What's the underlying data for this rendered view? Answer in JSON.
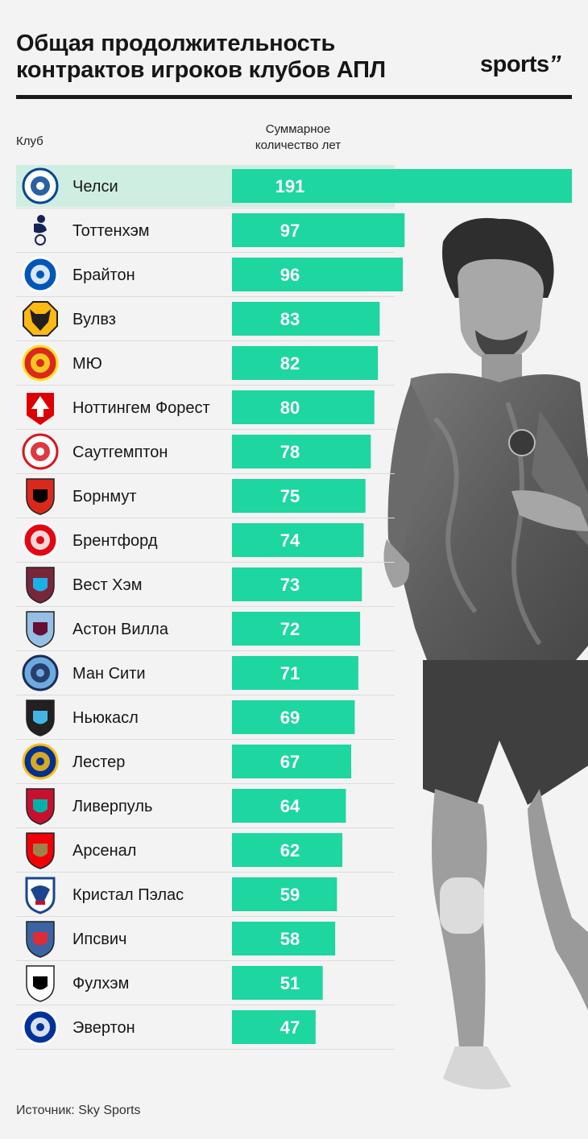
{
  "header": {
    "title_line1": "Общая продолжительность",
    "title_line2": "контрактов игроков клубов АПЛ",
    "brand": "sports",
    "brand_mark": "’’"
  },
  "columns": {
    "club": "Клуб",
    "years_line1": "Суммарное",
    "years_line2": "количество лет"
  },
  "footer": {
    "source": "Источник: Sky Sports"
  },
  "colors": {
    "bar": "#1dd6a0",
    "highlight_row": "#cfeee2",
    "separator": "#dcdcdc",
    "value_text": "#ffffff"
  },
  "chart_data": {
    "type": "bar",
    "orientation": "horizontal",
    "title": "Общая продолжительность контрактов игроков клубов АПЛ",
    "xlabel": "Суммарное количество лет",
    "ylabel": "Клуб",
    "categories": [
      "Челси",
      "Тоттенхэм",
      "Брайтон",
      "Вулвз",
      "МЮ",
      "Ноттингем Форест",
      "Саутгемптон",
      "Борнмут",
      "Брентфорд",
      "Вест Хэм",
      "Астон Вилла",
      "Ман Сити",
      "Ньюкасл",
      "Лестер",
      "Ливерпуль",
      "Арсенал",
      "Кристал Пэлас",
      "Ипсвич",
      "Фулхэм",
      "Эвертон"
    ],
    "values": [
      191,
      97,
      96,
      83,
      82,
      80,
      78,
      75,
      74,
      73,
      72,
      71,
      69,
      67,
      64,
      62,
      59,
      58,
      51,
      47
    ],
    "highlight": "Челси",
    "source": "Источник: Sky Sports"
  },
  "crests": [
    {
      "icon": "chelsea-crest-icon",
      "bg": "#ffffff",
      "fg": "#034694",
      "shape": "circle"
    },
    {
      "icon": "tottenham-crest-icon",
      "bg": "none",
      "fg": "#132257",
      "shape": "cockerel"
    },
    {
      "icon": "brighton-crest-icon",
      "bg": "#0057b8",
      "fg": "#ffffff",
      "shape": "circle"
    },
    {
      "icon": "wolves-crest-icon",
      "bg": "#fdb913",
      "fg": "#231f20",
      "shape": "octagon"
    },
    {
      "icon": "man-utd-crest-icon",
      "bg": "#da291c",
      "fg": "#fbe122",
      "shape": "circle"
    },
    {
      "icon": "nottingham-forest-crest-icon",
      "bg": "#dd0000",
      "fg": "#ffffff",
      "shape": "tree"
    },
    {
      "icon": "southampton-crest-icon",
      "bg": "#ffffff",
      "fg": "#d71920",
      "shape": "circle"
    },
    {
      "icon": "bournemouth-crest-icon",
      "bg": "#da291c",
      "fg": "#000000",
      "shape": "shield"
    },
    {
      "icon": "brentford-crest-icon",
      "bg": "#e30613",
      "fg": "#ffffff",
      "shape": "circle"
    },
    {
      "icon": "west-ham-crest-icon",
      "bg": "#7a263a",
      "fg": "#1bb1e7",
      "shape": "shield"
    },
    {
      "icon": "aston-villa-crest-icon",
      "bg": "#95bfe5",
      "fg": "#670e36",
      "shape": "shield"
    },
    {
      "icon": "man-city-crest-icon",
      "bg": "#6cabdd",
      "fg": "#1c2c5b",
      "shape": "circle"
    },
    {
      "icon": "newcastle-crest-icon",
      "bg": "#241f20",
      "fg": "#41b6e6",
      "shape": "shield"
    },
    {
      "icon": "leicester-crest-icon",
      "bg": "#003090",
      "fg": "#fdbe11",
      "shape": "circle"
    },
    {
      "icon": "liverpool-crest-icon",
      "bg": "#c8102e",
      "fg": "#00b2a9",
      "shape": "shield"
    },
    {
      "icon": "arsenal-crest-icon",
      "bg": "#ef0107",
      "fg": "#9c824a",
      "shape": "shield"
    },
    {
      "icon": "crystal-palace-crest-icon",
      "bg": "#1b458f",
      "fg": "#c4122e",
      "shape": "eagle"
    },
    {
      "icon": "ipswich-crest-icon",
      "bg": "#3a64a3",
      "fg": "#de2c37",
      "shape": "shield"
    },
    {
      "icon": "fulham-crest-icon",
      "bg": "#ffffff",
      "fg": "#000000",
      "shape": "shield"
    },
    {
      "icon": "everton-crest-icon",
      "bg": "#003399",
      "fg": "#ffffff",
      "shape": "circle"
    }
  ]
}
